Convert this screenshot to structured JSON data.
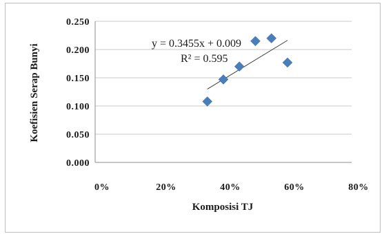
{
  "chart_data": {
    "type": "scatter",
    "title": "",
    "xlabel": "Komposisi TJ",
    "ylabel": "Koefisien Serap Bunyi",
    "xlim": [
      0,
      0.8
    ],
    "ylim": [
      0,
      0.25
    ],
    "x_ticks": [
      "0%",
      "20%",
      "40%",
      "60%",
      "80%"
    ],
    "y_ticks": [
      "0.000",
      "0.050",
      "0.100",
      "0.150",
      "0.200",
      "0.250"
    ],
    "grid": "horizontal",
    "series": [
      {
        "x": [
          0.35,
          0.4,
          0.45,
          0.5,
          0.55,
          0.6
        ],
        "y": [
          0.108,
          0.147,
          0.17,
          0.215,
          0.22,
          0.177
        ],
        "marker": "diamond",
        "color": "#4a7ebb"
      }
    ],
    "trendline": {
      "type": "linear",
      "slope": 0.3455,
      "intercept": 0.009,
      "x_range": [
        0.35,
        0.6
      ],
      "color": "#3a3a3a",
      "equation_label": "y = 0.3455x + 0.009",
      "r2_label": "R² = 0.595"
    }
  }
}
